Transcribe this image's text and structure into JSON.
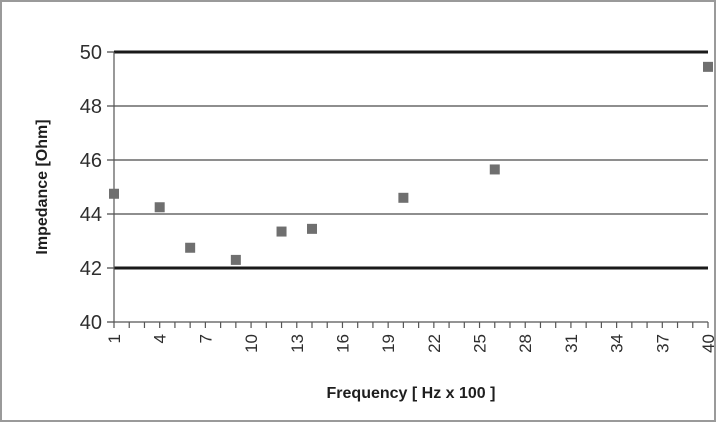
{
  "chart_data": {
    "type": "scatter",
    "title": "",
    "xlabel": "Frequency [ Hz x 100 ]",
    "ylabel": "Impedance [Ohm]",
    "xlim": [
      1,
      40
    ],
    "ylim": [
      40,
      50
    ],
    "x_ticks": [
      1,
      4,
      7,
      10,
      13,
      16,
      19,
      22,
      25,
      28,
      31,
      34,
      37,
      40
    ],
    "y_ticks": [
      40,
      42,
      44,
      46,
      48,
      50
    ],
    "bold_gridlines": [
      42,
      50
    ],
    "grid": true,
    "legend": "none",
    "marker": "square",
    "marker_color": "#6f6f6f",
    "series": [
      {
        "x": [
          1,
          4,
          6,
          9,
          12,
          14,
          20,
          26,
          40
        ],
        "y": [
          44.75,
          44.25,
          42.75,
          42.3,
          43.35,
          43.45,
          44.6,
          45.65,
          49.45
        ]
      }
    ]
  }
}
